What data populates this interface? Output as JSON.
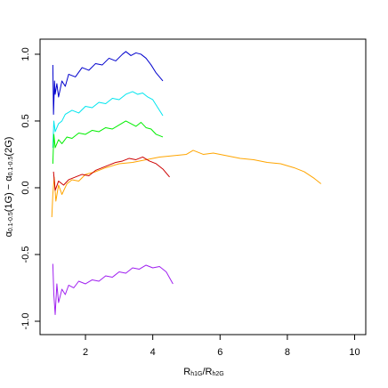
{
  "chart_data": {
    "type": "line",
    "x_label": [
      "R",
      "h1G",
      "/R",
      "h2G"
    ],
    "y_label": [
      "α",
      "0.1-0.5",
      "(1G) − α",
      "0.1-0.5",
      "(2G)"
    ],
    "xlim": [
      0.65,
      10.33
    ],
    "ylim": [
      -1.1,
      1.113
    ],
    "xticks": [
      2,
      4,
      6,
      8,
      10
    ],
    "yticks": [
      {
        "value": -1,
        "label": "-1.0"
      },
      {
        "value": -0.5,
        "label": "-0.5"
      },
      {
        "value": 0,
        "label": "0.0"
      },
      {
        "value": 0.5,
        "label": "0.5"
      },
      {
        "value": 1,
        "label": "1.0"
      }
    ],
    "series": [
      {
        "color": "#0000cd",
        "x": [
          1.03,
          1.05,
          1.08,
          1.1,
          1.15,
          1.2,
          1.3,
          1.4,
          1.5,
          1.7,
          1.9,
          2.1,
          2.3,
          2.5,
          2.7,
          2.9,
          3.1,
          3.2,
          3.35,
          3.5,
          3.65,
          3.8,
          3.95,
          4.1,
          4.3
        ],
        "values": [
          0.92,
          0.55,
          0.8,
          0.7,
          0.78,
          0.68,
          0.8,
          0.76,
          0.85,
          0.83,
          0.9,
          0.88,
          0.93,
          0.92,
          0.97,
          0.95,
          1.0,
          1.02,
          0.99,
          1.01,
          1.0,
          0.97,
          0.92,
          0.86,
          0.8
        ]
      },
      {
        "color": "#00e5ee",
        "x": [
          1.03,
          1.06,
          1.1,
          1.2,
          1.3,
          1.4,
          1.6,
          1.8,
          2.0,
          2.2,
          2.4,
          2.6,
          2.8,
          3.0,
          3.2,
          3.4,
          3.55,
          3.7,
          3.85,
          4.0,
          4.15,
          4.3
        ],
        "values": [
          0.3,
          0.5,
          0.42,
          0.48,
          0.5,
          0.55,
          0.58,
          0.56,
          0.61,
          0.6,
          0.64,
          0.63,
          0.67,
          0.66,
          0.7,
          0.72,
          0.7,
          0.71,
          0.68,
          0.66,
          0.6,
          0.54
        ]
      },
      {
        "color": "#00ee00",
        "x": [
          1.03,
          1.06,
          1.1,
          1.2,
          1.3,
          1.45,
          1.6,
          1.8,
          2.0,
          2.2,
          2.4,
          2.6,
          2.8,
          3.0,
          3.2,
          3.35,
          3.5,
          3.65,
          3.8,
          3.95,
          4.1,
          4.3
        ],
        "values": [
          0.18,
          0.4,
          0.3,
          0.36,
          0.33,
          0.38,
          0.37,
          0.41,
          0.4,
          0.43,
          0.42,
          0.45,
          0.44,
          0.47,
          0.5,
          0.48,
          0.46,
          0.49,
          0.45,
          0.44,
          0.4,
          0.38
        ]
      },
      {
        "color": "#ffa500",
        "x": [
          1.0,
          1.03,
          1.07,
          1.12,
          1.2,
          1.3,
          1.45,
          1.6,
          1.8,
          2.0,
          2.3,
          2.6,
          3.0,
          3.4,
          3.8,
          4.2,
          4.6,
          5.0,
          5.2,
          5.5,
          5.8,
          6.2,
          6.6,
          7.0,
          7.4,
          7.8,
          8.2,
          8.5,
          8.8,
          9.0
        ],
        "values": [
          -0.22,
          -0.05,
          0.08,
          -0.1,
          0.02,
          -0.05,
          0.03,
          0.06,
          0.05,
          0.1,
          0.12,
          0.15,
          0.18,
          0.19,
          0.21,
          0.23,
          0.24,
          0.25,
          0.28,
          0.25,
          0.26,
          0.24,
          0.22,
          0.21,
          0.19,
          0.18,
          0.15,
          0.12,
          0.07,
          0.03
        ]
      },
      {
        "color": "#cd0000",
        "x": [
          1.05,
          1.1,
          1.2,
          1.35,
          1.5,
          1.7,
          1.9,
          2.1,
          2.3,
          2.5,
          2.7,
          2.9,
          3.1,
          3.3,
          3.5,
          3.7,
          3.9,
          4.1,
          4.3,
          4.5
        ],
        "values": [
          0.12,
          -0.02,
          0.05,
          0.02,
          0.06,
          0.08,
          0.1,
          0.09,
          0.13,
          0.15,
          0.17,
          0.19,
          0.2,
          0.22,
          0.21,
          0.23,
          0.2,
          0.18,
          0.14,
          0.08
        ]
      },
      {
        "color": "#a020f0",
        "x": [
          1.03,
          1.06,
          1.1,
          1.15,
          1.2,
          1.3,
          1.4,
          1.5,
          1.65,
          1.8,
          2.0,
          2.2,
          2.4,
          2.6,
          2.8,
          3.0,
          3.2,
          3.4,
          3.6,
          3.8,
          4.0,
          4.2,
          4.4,
          4.6
        ],
        "values": [
          -0.57,
          -0.8,
          -0.95,
          -0.72,
          -0.86,
          -0.76,
          -0.8,
          -0.73,
          -0.75,
          -0.7,
          -0.72,
          -0.69,
          -0.7,
          -0.66,
          -0.67,
          -0.63,
          -0.64,
          -0.6,
          -0.61,
          -0.58,
          -0.6,
          -0.59,
          -0.63,
          -0.72
        ]
      }
    ]
  }
}
